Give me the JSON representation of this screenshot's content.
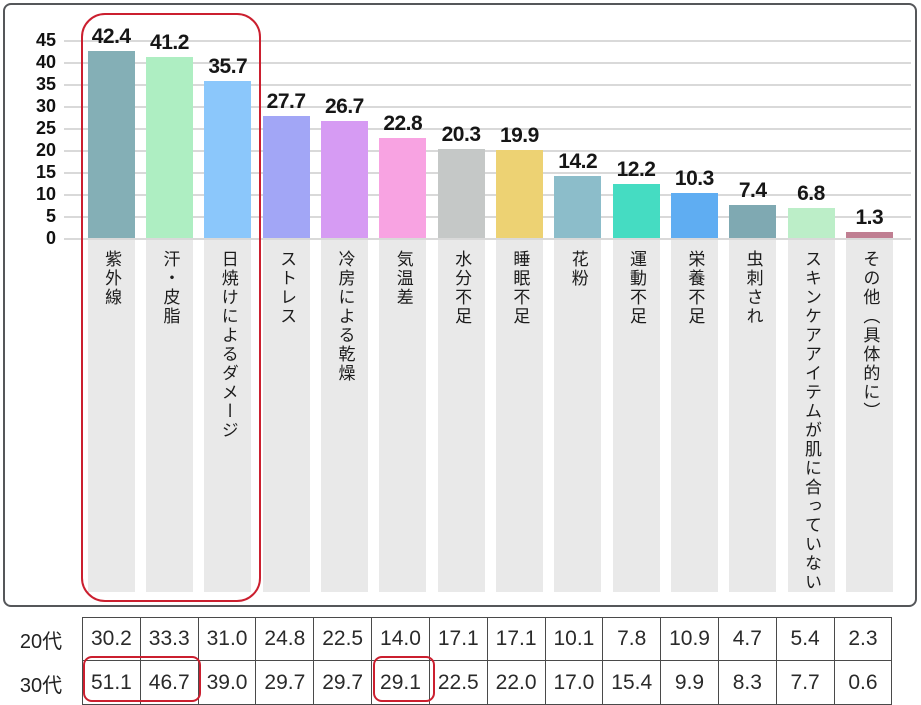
{
  "accent_red": "#cb1f2f",
  "grid_color": "#d9d9d9",
  "category_bg": "#e9e9e9",
  "chart_data": {
    "type": "bar",
    "title": "",
    "categories": [
      "紫外線",
      "汗・皮脂",
      "日焼けによるダメージ",
      "ストレス",
      "冷房による乾燥",
      "気温差",
      "水分不足",
      "睡眠不足",
      "花粉",
      "運動不足",
      "栄養不足",
      "虫刺され",
      "スキンケアアイテムが肌に合っていない",
      "その他（具体的に）"
    ],
    "values": [
      42.4,
      41.2,
      35.7,
      27.7,
      26.7,
      22.8,
      20.3,
      19.9,
      14.2,
      12.2,
      10.3,
      7.4,
      6.8,
      1.3
    ],
    "bar_colors": [
      "#84afb6",
      "#aeeec2",
      "#8bc7fb",
      "#a2a6f6",
      "#d69bf3",
      "#f8a3e2",
      "#c5c8c7",
      "#edd273",
      "#8cbdca",
      "#45dcc2",
      "#5fadf2",
      "#7fa9b2",
      "#bceec8",
      "#c07f92"
    ],
    "xlabel": "",
    "ylabel": "",
    "ylim": [
      0,
      45
    ],
    "ytick_step": 5,
    "grid": true,
    "legend_position": "none",
    "table_rows": [
      {
        "label": "20代",
        "values": [
          "30.2",
          "33.3",
          "31.0",
          "24.8",
          "22.5",
          "14.0",
          "17.1",
          "17.1",
          "10.1",
          "7.8",
          "10.9",
          "4.7",
          "5.4",
          "2.3"
        ]
      },
      {
        "label": "30代",
        "values": [
          "51.1",
          "46.7",
          "39.0",
          "29.7",
          "29.7",
          "29.1",
          "22.5",
          "22.0",
          "17.0",
          "15.4",
          "9.9",
          "8.3",
          "7.7",
          "0.6"
        ]
      }
    ],
    "annotations": {
      "chart_highlight": "red rounded box circling the top three bars (紫外線, 汗・皮脂, 日焼けによるダメージ)",
      "table_highlights": [
        "red box around 30代 values 51.1 and 46.7",
        "red box around 30代 value 29.1"
      ]
    }
  }
}
